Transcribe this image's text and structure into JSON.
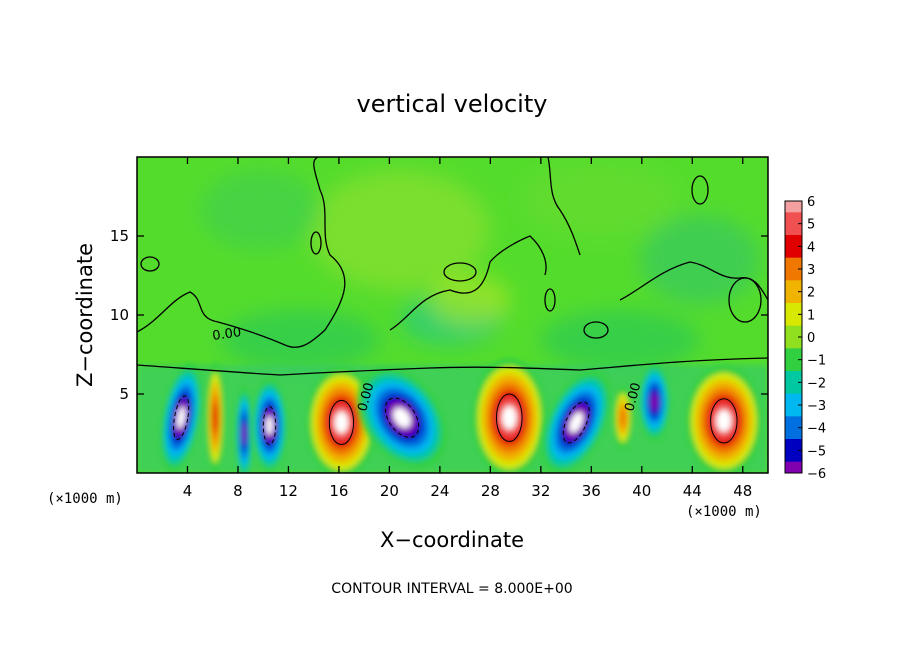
{
  "chart_data": {
    "type": "heatmap",
    "title": "vertical velocity",
    "xlabel": "X−coordinate",
    "ylabel": "Z−coordinate",
    "x_unit_label": "(×1000 m)",
    "x_ticks": [
      4,
      8,
      12,
      16,
      20,
      24,
      28,
      32,
      36,
      40,
      44,
      48
    ],
    "y_ticks": [
      5,
      10,
      15
    ],
    "xlim": [
      0,
      50
    ],
    "ylim": [
      0,
      20
    ],
    "colorbar": {
      "levels": [
        6,
        5,
        4,
        3,
        2,
        1,
        0,
        -1,
        -2,
        -3,
        -4,
        -5,
        -6
      ],
      "labels": [
        "6",
        "5",
        "4",
        "3",
        "2",
        "1",
        "0",
        "−1",
        "−2",
        "−3",
        "−4",
        "−5",
        "−6"
      ],
      "colors": [
        "#f4a0a0",
        "#f05050",
        "#e00000",
        "#f07800",
        "#f0b400",
        "#d8e800",
        "#90e020",
        "#30d040",
        "#00c8a0",
        "#00b8f0",
        "#0070e0",
        "#0000c0",
        "#8000b0"
      ]
    },
    "contour_label": "0.00",
    "footnote": "CONTOUR INTERVAL = 8.000E+00",
    "cells": [
      {
        "x": 3.5,
        "z": 3.5,
        "w": 3.0,
        "h": 7.0,
        "value": -6,
        "tilt": 10
      },
      {
        "x": 6.2,
        "z": 3.5,
        "w": 1.4,
        "h": 7.0,
        "value": 4,
        "tilt": 0
      },
      {
        "x": 8.5,
        "z": 2.5,
        "w": 1.4,
        "h": 6.0,
        "value": -5,
        "tilt": 0
      },
      {
        "x": 10.5,
        "z": 3.0,
        "w": 2.8,
        "h": 6.0,
        "value": -6,
        "tilt": 0
      },
      {
        "x": 16.2,
        "z": 3.2,
        "w": 5.5,
        "h": 7.0,
        "value": 6,
        "tilt": 0
      },
      {
        "x": 21.0,
        "z": 3.5,
        "w": 6.0,
        "h": 7.0,
        "value": -6,
        "tilt": -35
      },
      {
        "x": 29.5,
        "z": 3.5,
        "w": 5.8,
        "h": 7.5,
        "value": 6,
        "tilt": 0
      },
      {
        "x": 34.8,
        "z": 3.2,
        "w": 4.5,
        "h": 7.0,
        "value": -6,
        "tilt": 25
      },
      {
        "x": 38.5,
        "z": 3.5,
        "w": 1.5,
        "h": 4.0,
        "value": 3,
        "tilt": 0
      },
      {
        "x": 41.0,
        "z": 4.5,
        "w": 2.5,
        "h": 5.0,
        "value": -5,
        "tilt": 0
      },
      {
        "x": 46.5,
        "z": 3.3,
        "w": 6.0,
        "h": 7.0,
        "value": 6,
        "tilt": 0
      }
    ]
  }
}
